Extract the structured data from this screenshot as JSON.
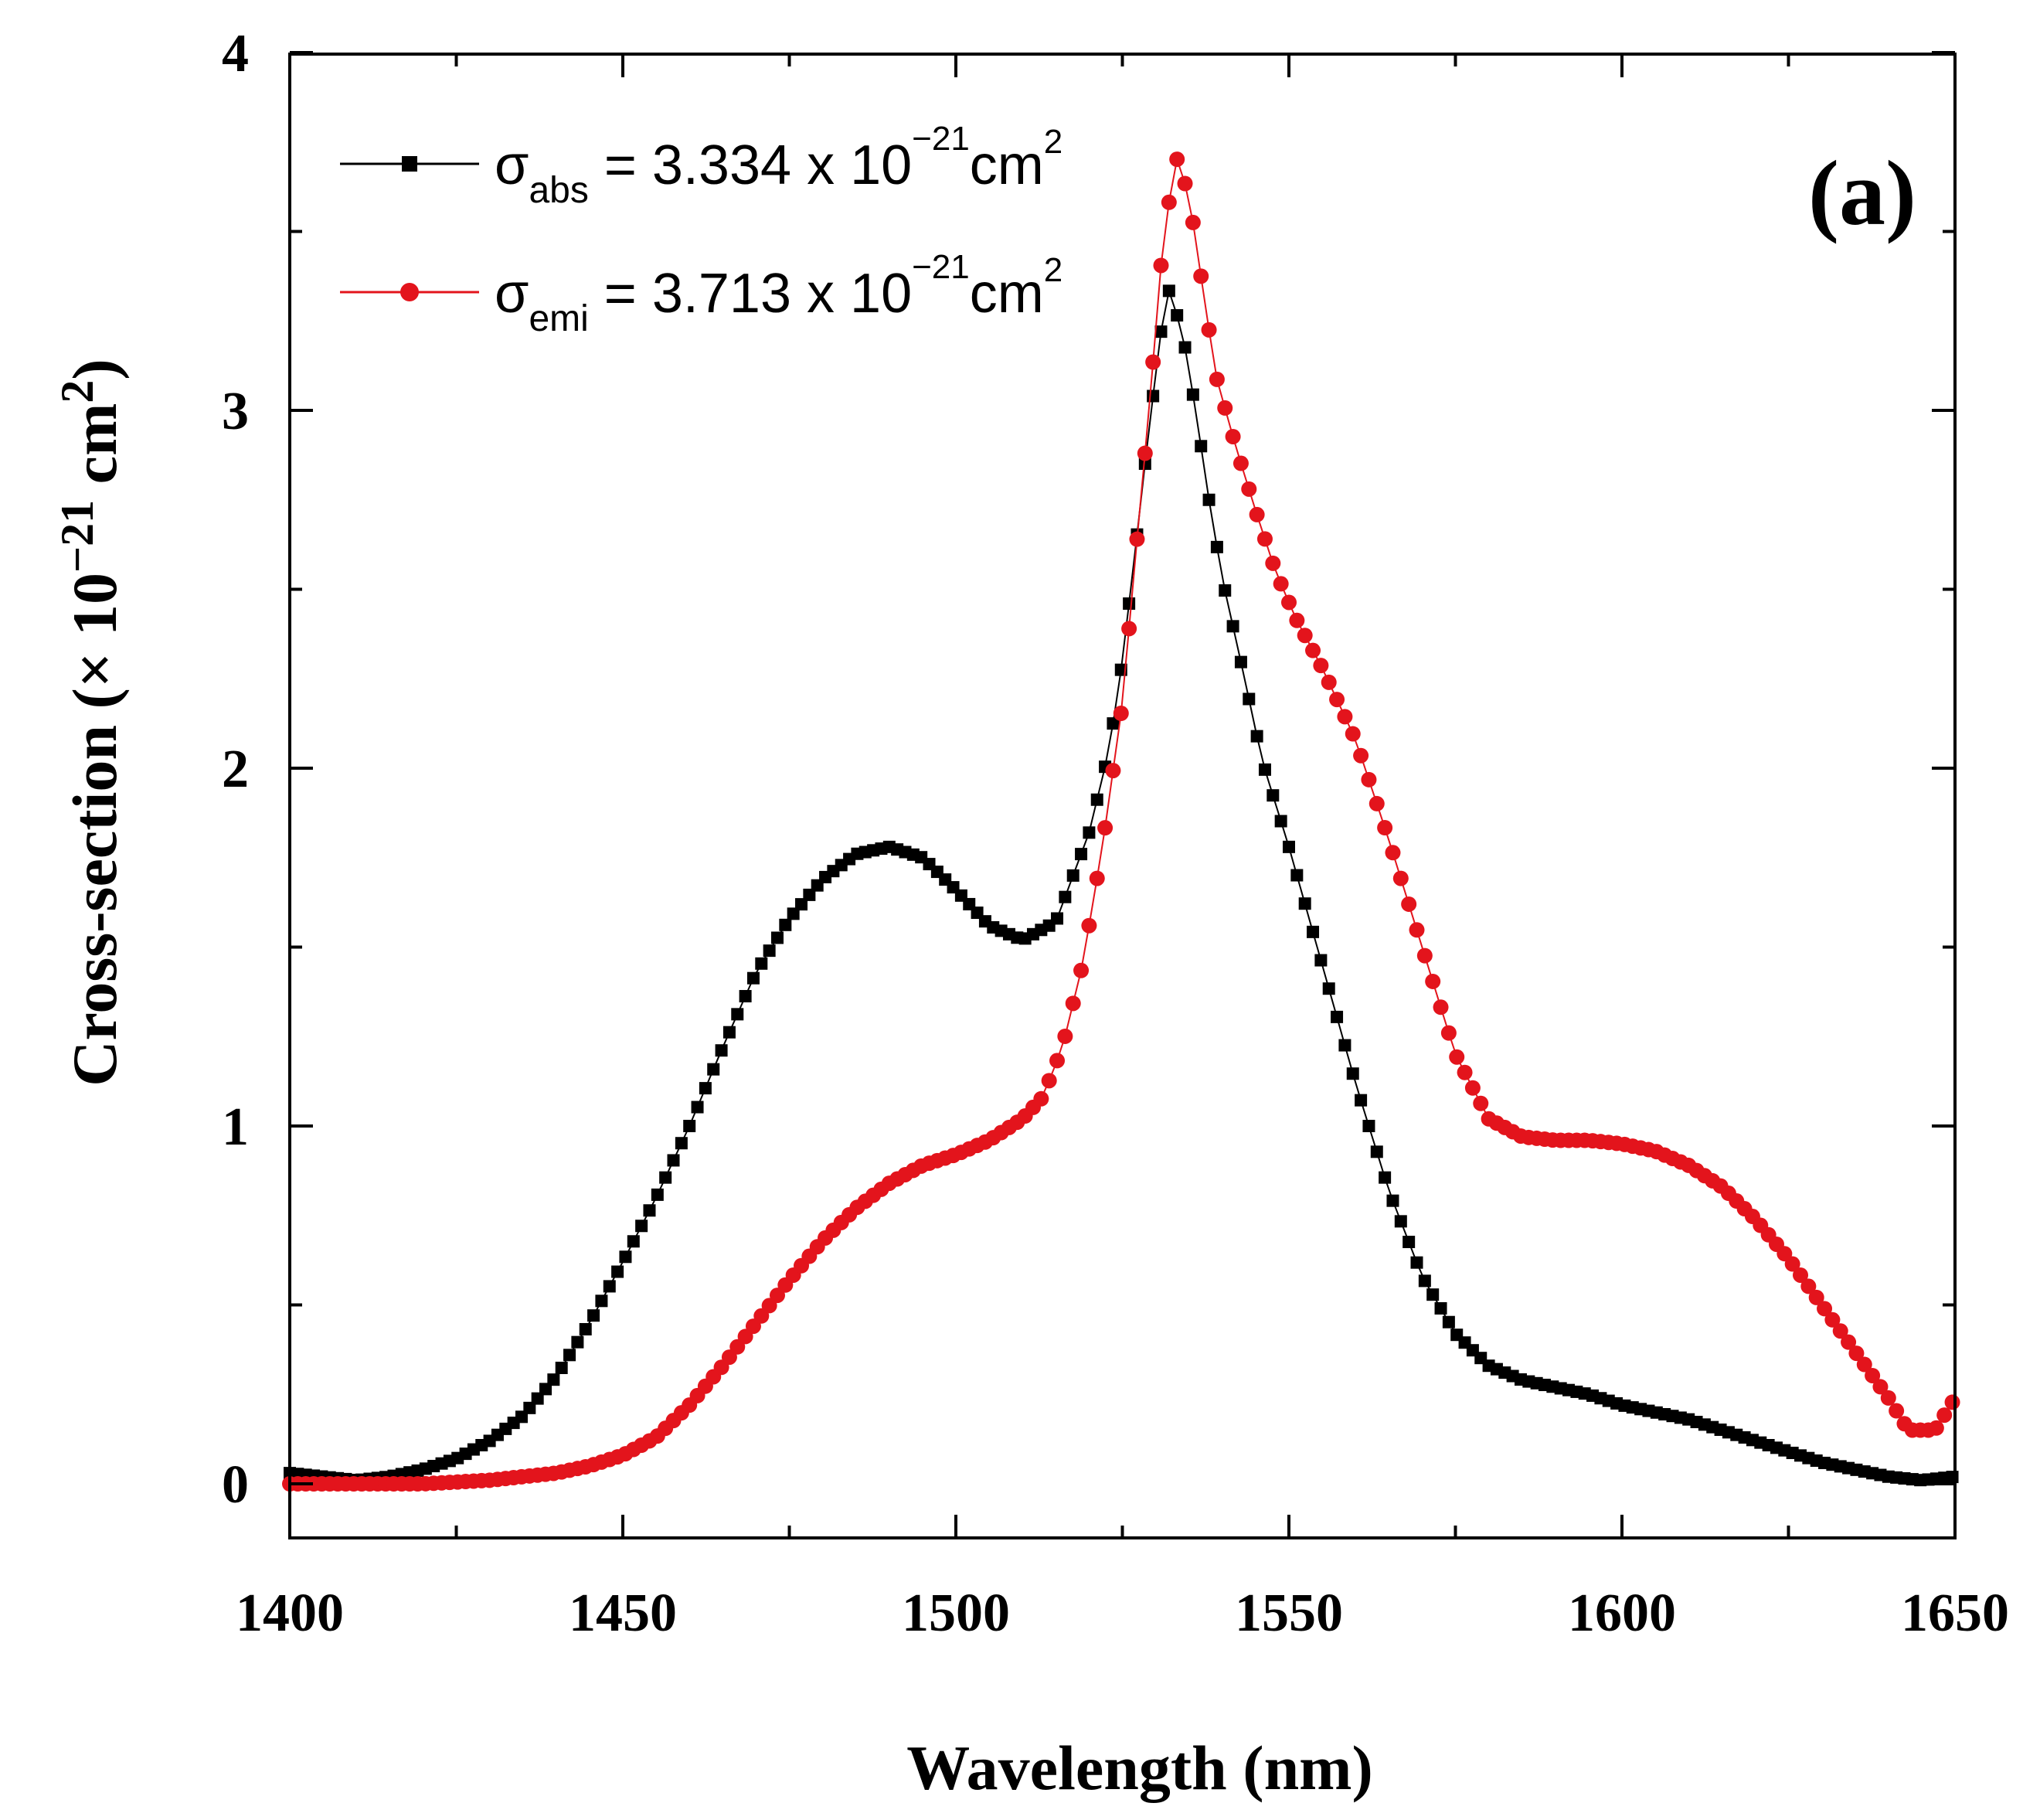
{
  "chart_data": {
    "type": "scatter",
    "panel_label": "(a)",
    "xlabel": "Wavelength (nm)",
    "ylabel": {
      "prefix": "Cross-section (× 10",
      "exponent": "−21",
      "unit": " cm",
      "unit_exp": "2",
      "suffix": ")"
    },
    "xlim": [
      1400,
      1650
    ],
    "ylim": [
      -0.1,
      4.0
    ],
    "xticks": [
      1400,
      1450,
      1500,
      1550,
      1600,
      1650
    ],
    "yticks": [
      0,
      1,
      2,
      3,
      4
    ],
    "grid": false,
    "legend_position": "top-left",
    "legend": [
      {
        "symbol": "σ",
        "subscript": "abs",
        "text": " = 3.334 x 10",
        "exponent": "−21",
        "unit": "cm",
        "unit_exp": "2"
      },
      {
        "symbol": "σ",
        "subscript": "emi",
        "text": " = 3.713 x 10",
        "exponent": "−21",
        "unit": "cm",
        "unit_exp": "2"
      }
    ],
    "series": [
      {
        "name": "sigma_abs",
        "color": "#000000",
        "marker": "square",
        "peak": 3.334,
        "points": [
          [
            1400,
            0.03
          ],
          [
            1410,
            0.01
          ],
          [
            1415,
            0.02
          ],
          [
            1420,
            0.04
          ],
          [
            1425,
            0.07
          ],
          [
            1430,
            0.12
          ],
          [
            1435,
            0.19
          ],
          [
            1440,
            0.3
          ],
          [
            1445,
            0.45
          ],
          [
            1450,
            0.62
          ],
          [
            1455,
            0.8
          ],
          [
            1460,
            1.0
          ],
          [
            1465,
            1.22
          ],
          [
            1470,
            1.43
          ],
          [
            1475,
            1.58
          ],
          [
            1480,
            1.69
          ],
          [
            1485,
            1.76
          ],
          [
            1490,
            1.78
          ],
          [
            1495,
            1.75
          ],
          [
            1500,
            1.66
          ],
          [
            1505,
            1.56
          ],
          [
            1510,
            1.52
          ],
          [
            1515,
            1.57
          ],
          [
            1520,
            1.82
          ],
          [
            1523,
            2.05
          ],
          [
            1525,
            2.3
          ],
          [
            1527,
            2.62
          ],
          [
            1529,
            2.95
          ],
          [
            1531,
            3.25
          ],
          [
            1532,
            3.334
          ],
          [
            1534,
            3.22
          ],
          [
            1536,
            3.0
          ],
          [
            1538,
            2.75
          ],
          [
            1540,
            2.53
          ],
          [
            1543,
            2.28
          ],
          [
            1546,
            2.02
          ],
          [
            1550,
            1.78
          ],
          [
            1555,
            1.45
          ],
          [
            1560,
            1.12
          ],
          [
            1565,
            0.82
          ],
          [
            1570,
            0.58
          ],
          [
            1575,
            0.42
          ],
          [
            1580,
            0.33
          ],
          [
            1585,
            0.29
          ],
          [
            1590,
            0.27
          ],
          [
            1595,
            0.25
          ],
          [
            1600,
            0.22
          ],
          [
            1605,
            0.2
          ],
          [
            1610,
            0.18
          ],
          [
            1615,
            0.15
          ],
          [
            1620,
            0.12
          ],
          [
            1625,
            0.09
          ],
          [
            1630,
            0.06
          ],
          [
            1635,
            0.04
          ],
          [
            1640,
            0.02
          ],
          [
            1645,
            0.01
          ],
          [
            1650,
            0.02
          ]
        ]
      },
      {
        "name": "sigma_emi",
        "color": "#e3141c",
        "marker": "circle",
        "peak": 3.713,
        "points": [
          [
            1400,
            0.0
          ],
          [
            1420,
            0.0
          ],
          [
            1430,
            0.01
          ],
          [
            1440,
            0.03
          ],
          [
            1445,
            0.05
          ],
          [
            1450,
            0.08
          ],
          [
            1455,
            0.13
          ],
          [
            1460,
            0.22
          ],
          [
            1465,
            0.33
          ],
          [
            1470,
            0.45
          ],
          [
            1475,
            0.57
          ],
          [
            1480,
            0.68
          ],
          [
            1485,
            0.77
          ],
          [
            1490,
            0.84
          ],
          [
            1495,
            0.89
          ],
          [
            1500,
            0.92
          ],
          [
            1505,
            0.96
          ],
          [
            1510,
            1.02
          ],
          [
            1513,
            1.08
          ],
          [
            1516,
            1.22
          ],
          [
            1519,
            1.45
          ],
          [
            1522,
            1.78
          ],
          [
            1525,
            2.18
          ],
          [
            1527,
            2.6
          ],
          [
            1529,
            3.0
          ],
          [
            1531,
            3.45
          ],
          [
            1533,
            3.713
          ],
          [
            1535,
            3.6
          ],
          [
            1537,
            3.35
          ],
          [
            1539,
            3.1
          ],
          [
            1542,
            2.9
          ],
          [
            1545,
            2.72
          ],
          [
            1548,
            2.55
          ],
          [
            1551,
            2.42
          ],
          [
            1555,
            2.28
          ],
          [
            1560,
            2.08
          ],
          [
            1565,
            1.8
          ],
          [
            1570,
            1.5
          ],
          [
            1575,
            1.2
          ],
          [
            1580,
            1.02
          ],
          [
            1585,
            0.97
          ],
          [
            1590,
            0.96
          ],
          [
            1595,
            0.96
          ],
          [
            1600,
            0.95
          ],
          [
            1605,
            0.93
          ],
          [
            1610,
            0.89
          ],
          [
            1615,
            0.83
          ],
          [
            1620,
            0.74
          ],
          [
            1625,
            0.63
          ],
          [
            1630,
            0.5
          ],
          [
            1635,
            0.37
          ],
          [
            1640,
            0.24
          ],
          [
            1643,
            0.15
          ],
          [
            1647,
            0.15
          ],
          [
            1650,
            0.24
          ]
        ]
      }
    ]
  }
}
